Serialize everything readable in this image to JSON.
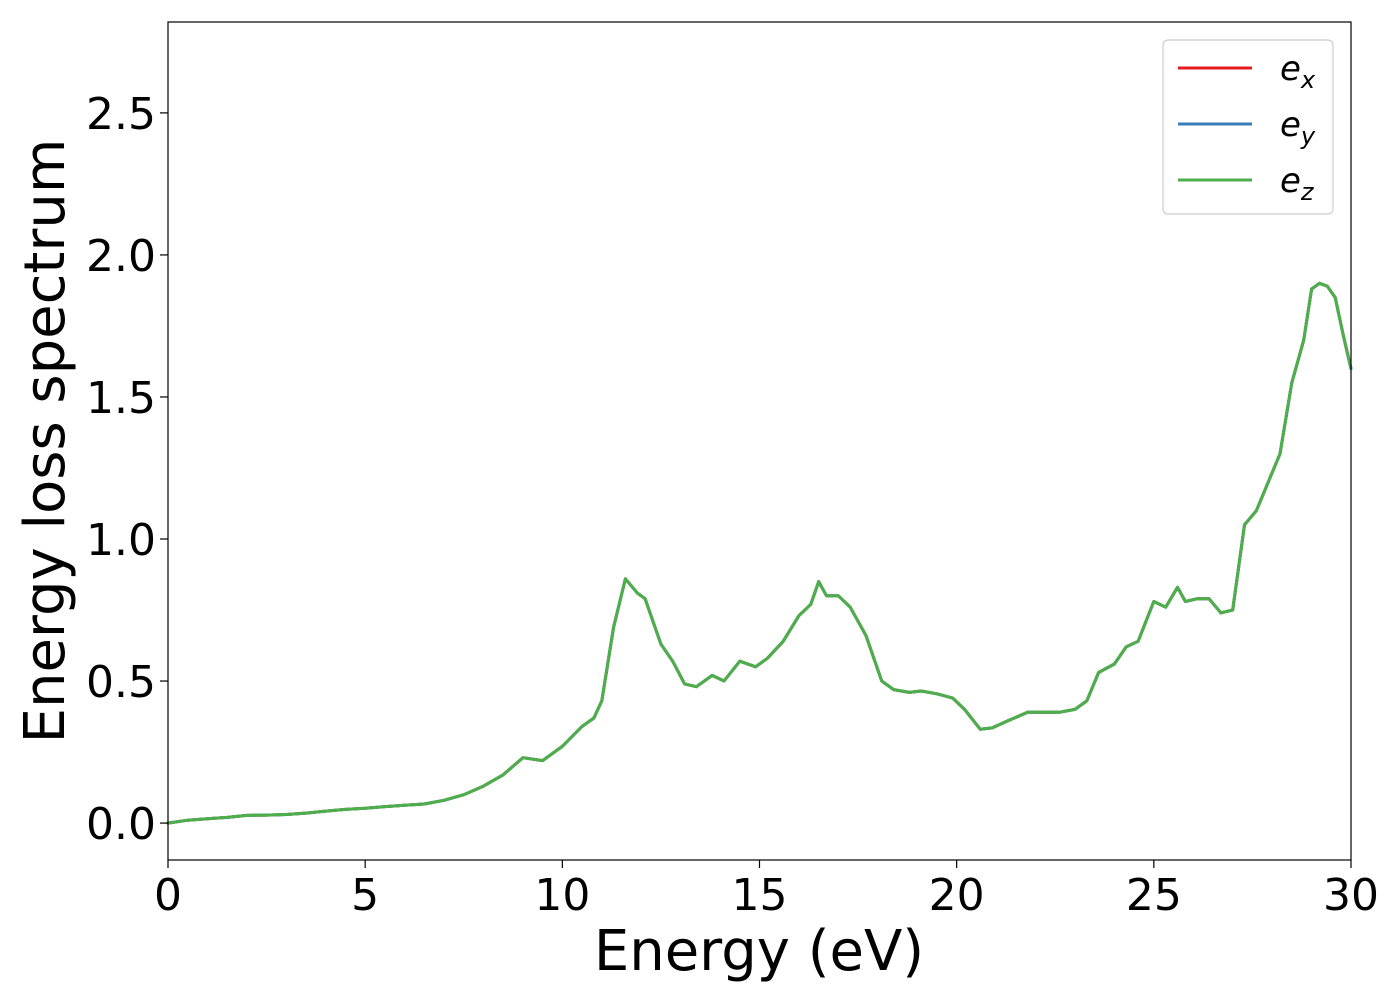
{
  "chart_data": {
    "type": "line",
    "title": "",
    "xlabel": "Energy (eV)",
    "ylabel": "Energy loss spectrum",
    "xlim": [
      0,
      30
    ],
    "ylim": [
      -0.13,
      2.82
    ],
    "xticks": [
      0,
      5,
      10,
      15,
      20,
      25,
      30
    ],
    "xtick_labels": [
      "0",
      "5",
      "10",
      "15",
      "20",
      "25",
      "30"
    ],
    "yticks": [
      0.0,
      0.5,
      1.0,
      1.5,
      2.0,
      2.5
    ],
    "ytick_labels": [
      "0.0",
      "0.5",
      "1.0",
      "1.5",
      "2.0",
      "2.5"
    ],
    "grid": false,
    "legend_position": "top-right",
    "x": [
      0,
      0.5,
      1,
      1.5,
      2,
      2.5,
      3,
      3.5,
      4,
      4.5,
      5,
      5.5,
      6,
      6.5,
      7,
      7.5,
      8,
      8.5,
      9,
      9.5,
      10,
      10.5,
      10.8,
      11,
      11.3,
      11.6,
      11.9,
      12.1,
      12.5,
      12.8,
      13.1,
      13.4,
      13.8,
      14.1,
      14.5,
      14.9,
      15.2,
      15.6,
      16,
      16.3,
      16.5,
      16.7,
      17,
      17.3,
      17.7,
      18.1,
      18.4,
      18.8,
      19.1,
      19.5,
      19.9,
      20.2,
      20.6,
      20.9,
      21.3,
      21.8,
      22.2,
      22.6,
      23,
      23.3,
      23.6,
      24,
      24.3,
      24.6,
      25,
      25.3,
      25.6,
      25.8,
      26.1,
      26.4,
      26.7,
      27,
      27.3,
      27.6,
      27.9,
      28.2,
      28.5,
      28.8,
      29,
      29.2,
      29.4,
      29.6,
      29.8,
      30
    ],
    "series": [
      {
        "name": "e",
        "subscript": "x",
        "color": "#e41a1c",
        "values": [
          0.0,
          0.01,
          0.015,
          0.02,
          0.027,
          0.028,
          0.03,
          0.035,
          0.042,
          0.048,
          0.052,
          0.058,
          0.063,
          0.067,
          0.08,
          0.1,
          0.13,
          0.17,
          0.23,
          0.22,
          0.27,
          0.34,
          0.37,
          0.43,
          0.69,
          0.86,
          0.81,
          0.79,
          0.63,
          0.57,
          0.49,
          0.48,
          0.52,
          0.5,
          0.57,
          0.55,
          0.58,
          0.64,
          0.73,
          0.77,
          0.85,
          0.8,
          0.8,
          0.76,
          0.66,
          0.5,
          0.47,
          0.46,
          0.465,
          0.455,
          0.44,
          0.4,
          0.33,
          0.335,
          0.36,
          0.39,
          0.39,
          0.39,
          0.4,
          0.43,
          0.53,
          0.56,
          0.62,
          0.64,
          0.78,
          0.76,
          0.83,
          0.78,
          0.79,
          0.79,
          0.74,
          0.75,
          1.05,
          1.1,
          1.2,
          1.3,
          1.55,
          1.7,
          1.88,
          1.9,
          1.89,
          1.85,
          1.72,
          1.6
        ]
      },
      {
        "name": "e",
        "subscript": "y",
        "color": "#377eb8",
        "values": [
          0.0,
          0.01,
          0.015,
          0.02,
          0.027,
          0.028,
          0.03,
          0.035,
          0.042,
          0.048,
          0.052,
          0.058,
          0.063,
          0.067,
          0.08,
          0.1,
          0.13,
          0.17,
          0.23,
          0.22,
          0.27,
          0.34,
          0.37,
          0.43,
          0.69,
          0.86,
          0.81,
          0.79,
          0.63,
          0.57,
          0.49,
          0.48,
          0.52,
          0.5,
          0.57,
          0.55,
          0.58,
          0.64,
          0.73,
          0.77,
          0.85,
          0.8,
          0.8,
          0.76,
          0.66,
          0.5,
          0.47,
          0.46,
          0.465,
          0.455,
          0.44,
          0.4,
          0.33,
          0.335,
          0.36,
          0.39,
          0.39,
          0.39,
          0.4,
          0.43,
          0.53,
          0.56,
          0.62,
          0.64,
          0.78,
          0.76,
          0.83,
          0.78,
          0.79,
          0.79,
          0.74,
          0.75,
          1.05,
          1.1,
          1.2,
          1.3,
          1.55,
          1.7,
          1.88,
          1.9,
          1.89,
          1.85,
          1.72,
          1.6
        ]
      },
      {
        "name": "e",
        "subscript": "z",
        "color": "#4daf4a",
        "values": [
          0.0,
          0.01,
          0.015,
          0.02,
          0.027,
          0.028,
          0.03,
          0.035,
          0.042,
          0.048,
          0.052,
          0.058,
          0.063,
          0.067,
          0.08,
          0.1,
          0.13,
          0.17,
          0.23,
          0.22,
          0.27,
          0.34,
          0.37,
          0.43,
          0.69,
          0.86,
          0.81,
          0.79,
          0.63,
          0.57,
          0.49,
          0.48,
          0.52,
          0.5,
          0.57,
          0.55,
          0.58,
          0.64,
          0.73,
          0.77,
          0.85,
          0.8,
          0.8,
          0.76,
          0.66,
          0.5,
          0.47,
          0.46,
          0.465,
          0.455,
          0.44,
          0.4,
          0.33,
          0.335,
          0.36,
          0.39,
          0.39,
          0.39,
          0.4,
          0.43,
          0.53,
          0.56,
          0.62,
          0.64,
          0.78,
          0.76,
          0.83,
          0.78,
          0.79,
          0.79,
          0.74,
          0.75,
          1.05,
          1.1,
          1.2,
          1.3,
          1.55,
          1.7,
          1.88,
          1.9,
          1.89,
          1.85,
          1.72,
          1.6
        ]
      }
    ]
  }
}
